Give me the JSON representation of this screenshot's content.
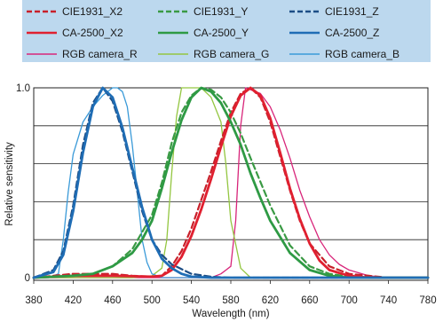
{
  "chart_data": {
    "type": "line",
    "title": "",
    "xlabel": "Wavelength (nm)",
    "ylabel": "Relative sensitivity",
    "xlim": [
      380,
      780
    ],
    "ylim": [
      0,
      1.0
    ],
    "x_ticks": [
      "380",
      "420",
      "460",
      "500",
      "540",
      "580",
      "620",
      "660",
      "700",
      "740",
      "780"
    ],
    "y_ticks": [
      "0",
      "1.0"
    ],
    "grid": "horizontal",
    "legend_position": "top",
    "legend_background": "#bcd8ee",
    "series": [
      {
        "name": "CIE1931_X2",
        "color": "#c8202a",
        "dash": "dashed",
        "width": 2.2,
        "x": [
          380,
          400,
          420,
          440,
          460,
          480,
          500,
          510,
          520,
          530,
          540,
          550,
          560,
          570,
          580,
          590,
          600,
          610,
          620,
          630,
          640,
          650,
          660,
          680,
          700,
          720,
          740,
          760,
          780
        ],
        "y": [
          0,
          0.01,
          0.02,
          0.02,
          0.02,
          0.01,
          0.005,
          0.01,
          0.06,
          0.14,
          0.26,
          0.41,
          0.56,
          0.72,
          0.87,
          0.97,
          1.0,
          0.95,
          0.82,
          0.64,
          0.46,
          0.3,
          0.18,
          0.06,
          0.02,
          0.01,
          0,
          0,
          0
        ]
      },
      {
        "name": "CIE1931_Y",
        "color": "#3a9a44",
        "dash": "dashed",
        "width": 2.2,
        "x": [
          380,
          420,
          440,
          460,
          480,
          500,
          510,
          520,
          530,
          540,
          550,
          560,
          570,
          580,
          590,
          600,
          620,
          640,
          660,
          680,
          700,
          720,
          740,
          780
        ],
        "y": [
          0,
          0.01,
          0.02,
          0.06,
          0.15,
          0.33,
          0.5,
          0.71,
          0.87,
          0.96,
          1.0,
          0.99,
          0.95,
          0.87,
          0.76,
          0.63,
          0.38,
          0.17,
          0.06,
          0.02,
          0.005,
          0,
          0,
          0
        ]
      },
      {
        "name": "CIE1931_Z",
        "color": "#1d4e86",
        "dash": "dashed",
        "width": 2.2,
        "x": [
          380,
          400,
          410,
          420,
          430,
          440,
          450,
          460,
          470,
          480,
          490,
          500,
          510,
          520,
          540,
          560,
          580,
          600,
          640,
          780
        ],
        "y": [
          0,
          0.04,
          0.14,
          0.38,
          0.7,
          0.92,
          1.0,
          0.93,
          0.77,
          0.56,
          0.35,
          0.2,
          0.12,
          0.07,
          0.02,
          0.005,
          0,
          0,
          0,
          0
        ]
      },
      {
        "name": "CA-2500_X2",
        "color": "#e02030",
        "dash": "solid",
        "width": 2.8,
        "x": [
          380,
          420,
          460,
          500,
          510,
          520,
          530,
          540,
          550,
          560,
          570,
          580,
          590,
          600,
          610,
          620,
          630,
          640,
          650,
          660,
          670,
          680,
          700,
          720,
          740,
          780
        ],
        "y": [
          0,
          0.01,
          0.01,
          0.005,
          0.01,
          0.04,
          0.11,
          0.22,
          0.36,
          0.52,
          0.69,
          0.85,
          0.96,
          1.0,
          0.96,
          0.84,
          0.66,
          0.47,
          0.31,
          0.18,
          0.09,
          0.04,
          0.01,
          0,
          0,
          0
        ]
      },
      {
        "name": "CA-2500_Y",
        "color": "#2e9a44",
        "dash": "solid",
        "width": 2.8,
        "x": [
          380,
          420,
          440,
          460,
          480,
          490,
          500,
          510,
          520,
          530,
          540,
          550,
          560,
          570,
          580,
          590,
          600,
          610,
          620,
          640,
          660,
          680,
          700,
          720,
          780
        ],
        "y": [
          0,
          0.01,
          0.02,
          0.06,
          0.13,
          0.2,
          0.3,
          0.47,
          0.66,
          0.83,
          0.95,
          1.0,
          0.98,
          0.92,
          0.82,
          0.7,
          0.55,
          0.42,
          0.3,
          0.13,
          0.04,
          0.01,
          0,
          0,
          0
        ]
      },
      {
        "name": "CA-2500_Z",
        "color": "#1f6db5",
        "dash": "solid",
        "width": 2.8,
        "x": [
          380,
          400,
          410,
          420,
          430,
          440,
          450,
          460,
          470,
          480,
          490,
          500,
          510,
          520,
          530,
          540,
          560,
          580,
          780
        ],
        "y": [
          0,
          0.03,
          0.12,
          0.35,
          0.66,
          0.9,
          1.0,
          0.95,
          0.79,
          0.58,
          0.37,
          0.2,
          0.1,
          0.05,
          0.02,
          0.005,
          0,
          0,
          0
        ]
      },
      {
        "name": "RGB camera_R",
        "color": "#d8257a",
        "dash": "solid",
        "width": 1.3,
        "x": [
          380,
          560,
          570,
          580,
          585,
          590,
          595,
          600,
          610,
          620,
          630,
          640,
          650,
          660,
          670,
          680,
          690,
          700,
          720,
          740,
          780
        ],
        "y": [
          0,
          0,
          0.02,
          0.06,
          0.3,
          0.8,
          1.0,
          0.99,
          0.97,
          0.9,
          0.78,
          0.63,
          0.46,
          0.32,
          0.2,
          0.12,
          0.07,
          0.04,
          0.01,
          0,
          0
        ],
        "note": ""
      },
      {
        "name": "RGB camera_G",
        "color": "#93c640",
        "dash": "solid",
        "width": 1.3,
        "x": [
          380,
          480,
          500,
          510,
          515,
          520,
          525,
          530,
          540,
          550,
          560,
          570,
          575,
          580,
          590,
          600,
          780
        ],
        "y": [
          0,
          0,
          0.01,
          0.05,
          0.2,
          0.55,
          0.85,
          1.0,
          1.0,
          1.0,
          0.95,
          0.82,
          0.6,
          0.3,
          0.05,
          0,
          0
        ]
      },
      {
        "name": "RGB camera_B",
        "color": "#3a9ad8",
        "dash": "solid",
        "width": 1.3,
        "x": [
          380,
          395,
          405,
          410,
          415,
          420,
          430,
          440,
          450,
          460,
          465,
          470,
          475,
          480,
          485,
          490,
          495,
          500,
          510,
          780
        ],
        "y": [
          0,
          0,
          0.02,
          0.2,
          0.45,
          0.65,
          0.82,
          0.9,
          0.96,
          1.0,
          1.0,
          0.98,
          0.9,
          0.7,
          0.45,
          0.2,
          0.08,
          0.02,
          0,
          0
        ]
      }
    ]
  }
}
